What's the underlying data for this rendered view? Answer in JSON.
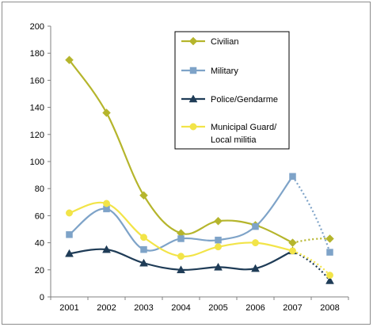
{
  "chart_data": {
    "type": "line",
    "title": "",
    "xlabel": "",
    "ylabel": "",
    "categories": [
      "2001",
      "2002",
      "2003",
      "2004",
      "2005",
      "2006",
      "2007",
      "2008"
    ],
    "ylim": [
      0,
      200
    ],
    "yticks": [
      0,
      20,
      40,
      60,
      80,
      100,
      120,
      140,
      160,
      180,
      200
    ],
    "grid": false,
    "legend_placement": "upper-center-right",
    "dashed_last_segment": true,
    "series": [
      {
        "name": "Civilian",
        "color": "#b5b52c",
        "marker": "diamond",
        "values": [
          175,
          136,
          75,
          47,
          56,
          53,
          40,
          43
        ]
      },
      {
        "name": "Military",
        "color": "#7ea3c8",
        "marker": "square",
        "values": [
          46,
          65,
          35,
          43,
          42,
          52,
          89,
          33
        ]
      },
      {
        "name": "Police/Gendarme",
        "color": "#1f3c57",
        "marker": "triangle",
        "values": [
          32,
          35,
          25,
          20,
          22,
          21,
          34,
          12
        ]
      },
      {
        "name": "Municipal Guard/ Local militia",
        "legend_lines": [
          "Municipal Guard/",
          "Local militia"
        ],
        "color": "#f2e448",
        "marker": "circle",
        "values": [
          62,
          69,
          44,
          30,
          37,
          40,
          34,
          16
        ]
      }
    ]
  }
}
